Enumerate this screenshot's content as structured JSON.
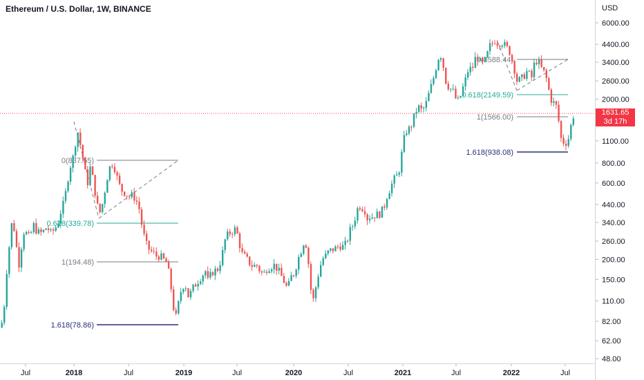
{
  "header": {
    "title": "Ethereum / U.S. Dollar, 1W, BINANCE"
  },
  "chart_data": {
    "type": "candlestick",
    "title": "Ethereum / U.S. Dollar, 1W, BINANCE",
    "y_axis": {
      "unit_label": "USD",
      "scale": "log",
      "ticks": [
        "6000.00",
        "4400.00",
        "3400.00",
        "2600.00",
        "2000.00",
        "1100.00",
        "800.00",
        "600.00",
        "440.00",
        "340.00",
        "260.00",
        "200.00",
        "150.00",
        "110.00",
        "82.00",
        "62.00",
        "48.00"
      ],
      "range": [
        45,
        8000
      ]
    },
    "x_axis": {
      "ticks": [
        {
          "label": "Jul",
          "bold": false
        },
        {
          "label": "2018",
          "bold": true
        },
        {
          "label": "Jul",
          "bold": false
        },
        {
          "label": "2019",
          "bold": true
        },
        {
          "label": "Jul",
          "bold": false
        },
        {
          "label": "2020",
          "bold": true
        },
        {
          "label": "Jul",
          "bold": false
        },
        {
          "label": "2021",
          "bold": true
        },
        {
          "label": "Jul",
          "bold": false
        },
        {
          "label": "2022",
          "bold": true
        },
        {
          "label": "Jul",
          "bold": false
        }
      ]
    },
    "current_price": {
      "value": "1631.65",
      "countdown": "3d 17h",
      "color": "#f23645"
    },
    "colors": {
      "up": "#26a69a",
      "down": "#ef5350",
      "fib_ext": "#2a2e7a",
      "fib_mid": "#22ab94",
      "fib_gray": "#787b86"
    },
    "annotations": [
      "0(837.55)",
      "0.618(339.78)",
      "1(194.48)",
      "1.618(78.86)",
      "0(3588.44)",
      "0.618(2149.59)",
      "1(1566.00)",
      "1.618(938.08)"
    ],
    "price_path": [
      [
        0,
        75
      ],
      [
        4,
        90
      ],
      [
        9,
        180
      ],
      [
        13,
        260
      ],
      [
        17,
        370
      ],
      [
        22,
        250
      ],
      [
        27,
        180
      ],
      [
        32,
        300
      ],
      [
        37,
        290
      ],
      [
        42,
        270
      ],
      [
        47,
        330
      ],
      [
        52,
        300
      ],
      [
        57,
        290
      ],
      [
        62,
        300
      ],
      [
        67,
        320
      ],
      [
        72,
        290
      ],
      [
        77,
        305
      ],
      [
        82,
        330
      ],
      [
        87,
        400
      ],
      [
        92,
        460
      ],
      [
        96,
        600
      ],
      [
        100,
        750
      ],
      [
        104,
        850
      ],
      [
        107,
        950
      ],
      [
        110,
        1350
      ],
      [
        114,
        1100
      ],
      [
        118,
        900
      ],
      [
        122,
        700
      ],
      [
        126,
        600
      ],
      [
        130,
        780
      ],
      [
        134,
        600
      ],
      [
        138,
        480
      ],
      [
        142,
        380
      ],
      [
        146,
        420
      ],
      [
        150,
        520
      ],
      [
        154,
        650
      ],
      [
        158,
        760
      ],
      [
        162,
        800
      ],
      [
        166,
        720
      ],
      [
        170,
        600
      ],
      [
        175,
        540
      ],
      [
        180,
        520
      ],
      [
        185,
        490
      ],
      [
        190,
        500
      ],
      [
        195,
        480
      ],
      [
        200,
        420
      ],
      [
        205,
        310
      ],
      [
        210,
        250
      ],
      [
        215,
        230
      ],
      [
        220,
        220
      ],
      [
        225,
        210
      ],
      [
        230,
        210
      ],
      [
        235,
        200
      ],
      [
        240,
        190
      ],
      [
        245,
        150
      ],
      [
        249,
        105
      ],
      [
        253,
        85
      ],
      [
        257,
        105
      ],
      [
        262,
        135
      ],
      [
        267,
        140
      ],
      [
        272,
        115
      ],
      [
        277,
        130
      ],
      [
        282,
        140
      ],
      [
        287,
        150
      ],
      [
        292,
        160
      ],
      [
        296,
        170
      ],
      [
        300,
        145
      ],
      [
        305,
        165
      ],
      [
        310,
        170
      ],
      [
        315,
        175
      ],
      [
        320,
        210
      ],
      [
        325,
        270
      ],
      [
        330,
        290
      ],
      [
        335,
        300
      ],
      [
        340,
        310
      ],
      [
        344,
        270
      ],
      [
        348,
        220
      ],
      [
        352,
        210
      ],
      [
        356,
        200
      ],
      [
        360,
        190
      ],
      [
        365,
        180
      ],
      [
        370,
        185
      ],
      [
        375,
        170
      ],
      [
        380,
        160
      ],
      [
        385,
        175
      ],
      [
        390,
        180
      ],
      [
        395,
        185
      ],
      [
        400,
        175
      ],
      [
        405,
        160
      ],
      [
        410,
        145
      ],
      [
        415,
        130
      ],
      [
        420,
        155
      ],
      [
        425,
        165
      ],
      [
        430,
        200
      ],
      [
        435,
        230
      ],
      [
        440,
        270
      ],
      [
        444,
        220
      ],
      [
        448,
        135
      ],
      [
        452,
        110
      ],
      [
        456,
        135
      ],
      [
        460,
        165
      ],
      [
        465,
        200
      ],
      [
        470,
        210
      ],
      [
        475,
        225
      ],
      [
        480,
        230
      ],
      [
        485,
        235
      ],
      [
        490,
        245
      ],
      [
        495,
        240
      ],
      [
        500,
        250
      ],
      [
        505,
        300
      ],
      [
        510,
        330
      ],
      [
        514,
        380
      ],
      [
        518,
        440
      ],
      [
        522,
        420
      ],
      [
        526,
        420
      ],
      [
        530,
        360
      ],
      [
        534,
        370
      ],
      [
        538,
        370
      ],
      [
        542,
        380
      ],
      [
        546,
        380
      ],
      [
        550,
        390
      ],
      [
        555,
        430
      ],
      [
        560,
        520
      ],
      [
        564,
        560
      ],
      [
        568,
        620
      ],
      [
        572,
        650
      ],
      [
        576,
        700
      ],
      [
        580,
        900
      ],
      [
        584,
        1150
      ],
      [
        588,
        1300
      ],
      [
        592,
        1300
      ],
      [
        596,
        1450
      ],
      [
        600,
        1650
      ],
      [
        604,
        1800
      ],
      [
        608,
        1700
      ],
      [
        612,
        1750
      ],
      [
        616,
        1900
      ],
      [
        620,
        2200
      ],
      [
        624,
        2500
      ],
      [
        628,
        2900
      ],
      [
        632,
        3500
      ],
      [
        636,
        3900
      ],
      [
        640,
        3300
      ],
      [
        644,
        2600
      ],
      [
        648,
        2400
      ],
      [
        652,
        2300
      ],
      [
        656,
        2200
      ],
      [
        660,
        1900
      ],
      [
        664,
        2000
      ],
      [
        668,
        2300
      ],
      [
        672,
        2600
      ],
      [
        676,
        3000
      ],
      [
        680,
        3100
      ],
      [
        684,
        3200
      ],
      [
        688,
        3800
      ],
      [
        692,
        3500
      ],
      [
        696,
        3300
      ],
      [
        700,
        3400
      ],
      [
        704,
        3800
      ],
      [
        708,
        4300
      ],
      [
        712,
        4500
      ],
      [
        716,
        4700
      ],
      [
        720,
        4400
      ],
      [
        724,
        4600
      ],
      [
        728,
        4400
      ],
      [
        732,
        4200
      ],
      [
        736,
        4000
      ],
      [
        740,
        3500
      ],
      [
        744,
        3000
      ],
      [
        748,
        2500
      ],
      [
        752,
        2700
      ],
      [
        756,
        2700
      ],
      [
        760,
        3000
      ],
      [
        764,
        2900
      ],
      [
        768,
        2700
      ],
      [
        772,
        3300
      ],
      [
        776,
        3500
      ],
      [
        780,
        3300
      ],
      [
        784,
        3000
      ],
      [
        788,
        2900
      ],
      [
        792,
        2400
      ],
      [
        796,
        2000
      ],
      [
        800,
        1900
      ],
      [
        804,
        1800
      ],
      [
        808,
        1400
      ],
      [
        812,
        1050
      ],
      [
        816,
        1100
      ],
      [
        820,
        1050
      ],
      [
        824,
        1300
      ],
      [
        828,
        1550
      ],
      [
        830,
        1632
      ]
    ]
  }
}
